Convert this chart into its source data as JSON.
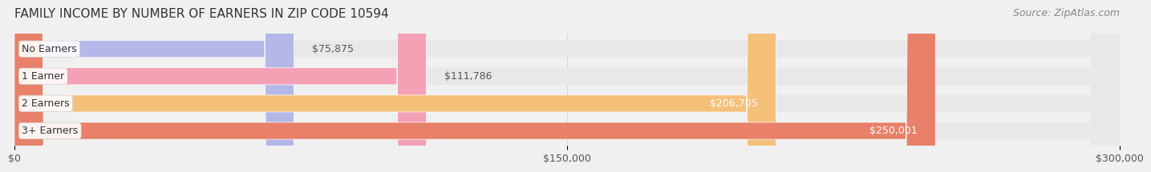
{
  "title": "FAMILY INCOME BY NUMBER OF EARNERS IN ZIP CODE 10594",
  "source": "Source: ZipAtlas.com",
  "categories": [
    "No Earners",
    "1 Earner",
    "2 Earners",
    "3+ Earners"
  ],
  "values": [
    75875,
    111786,
    206705,
    250001
  ],
  "bar_colors": [
    "#b3b8e8",
    "#f4a0b5",
    "#f5c07a",
    "#e8806a"
  ],
  "bar_edge_colors": [
    "#9a9fd0",
    "#e080a0",
    "#e0a855",
    "#d06050"
  ],
  "label_colors": [
    "#555555",
    "#555555",
    "#ffffff",
    "#ffffff"
  ],
  "value_labels": [
    "$75,875",
    "$111,786",
    "$206,705",
    "$250,001"
  ],
  "xlim": [
    0,
    300000
  ],
  "xticks": [
    0,
    150000,
    300000
  ],
  "xticklabels": [
    "$0",
    "$150,000",
    "$300,000"
  ],
  "background_color": "#f0f0f0",
  "bar_background_color": "#e8e8e8",
  "title_fontsize": 11,
  "source_fontsize": 9,
  "label_fontsize": 9,
  "value_fontsize": 9,
  "tick_fontsize": 9,
  "bar_height": 0.62,
  "figsize": [
    14.06,
    2.33
  ]
}
